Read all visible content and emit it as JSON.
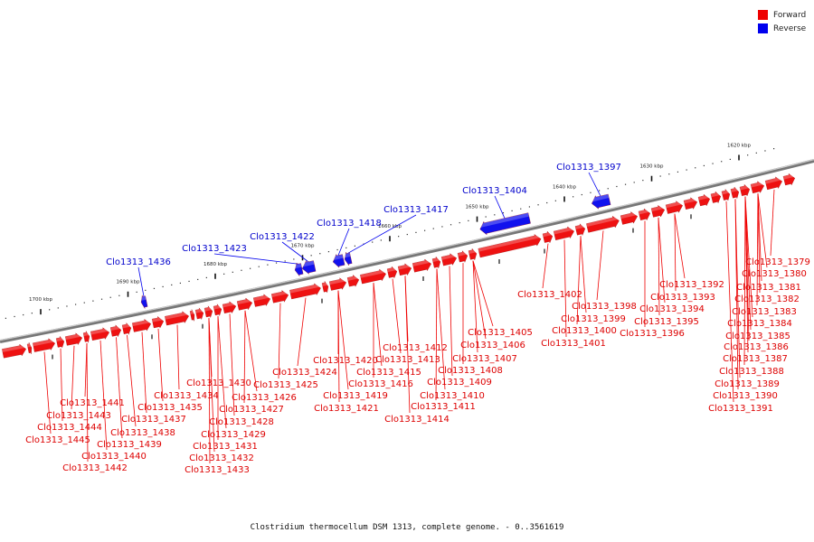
{
  "legend": [
    {
      "label": "Forward",
      "color": "#ee0000"
    },
    {
      "label": "Reverse",
      "color": "#0000ee"
    }
  ],
  "caption": "Clostridium thermocellum DSM 1313, complete genome. - 0..3561619",
  "scale": {
    "unit": "kbp",
    "major_ticks": [
      {
        "kbp": 1620,
        "label": "1620 kbp"
      },
      {
        "kbp": 1630,
        "label": "1630 kbp"
      },
      {
        "kbp": 1640,
        "label": "1640 kbp"
      },
      {
        "kbp": 1650,
        "label": "1650 kbp"
      },
      {
        "kbp": 1660,
        "label": "1660 kbp"
      },
      {
        "kbp": 1670,
        "label": "1670 kbp"
      },
      {
        "kbp": 1680,
        "label": "1680 kbp"
      },
      {
        "kbp": 1690,
        "label": "1690 kbp"
      },
      {
        "kbp": 1700,
        "label": "1700 kbp"
      }
    ]
  },
  "reverse_genes": [
    {
      "label": "Clo1313_1397"
    },
    {
      "label": "Clo1313_1404"
    },
    {
      "label": "Clo1313_1417"
    },
    {
      "label": "Clo1313_1418"
    },
    {
      "label": "Clo1313_1422"
    },
    {
      "label": "Clo1313_1423"
    },
    {
      "label": "Clo1313_1436"
    }
  ],
  "forward_genes": [
    {
      "label": "Clo1313_1379"
    },
    {
      "label": "Clo1313_1380"
    },
    {
      "label": "Clo1313_1381"
    },
    {
      "label": "Clo1313_1382"
    },
    {
      "label": "Clo1313_1383"
    },
    {
      "label": "Clo1313_1384"
    },
    {
      "label": "Clo1313_1385"
    },
    {
      "label": "Clo1313_1386"
    },
    {
      "label": "Clo1313_1387"
    },
    {
      "label": "Clo1313_1388"
    },
    {
      "label": "Clo1313_1389"
    },
    {
      "label": "Clo1313_1390"
    },
    {
      "label": "Clo1313_1391"
    },
    {
      "label": "Clo1313_1392"
    },
    {
      "label": "Clo1313_1393"
    },
    {
      "label": "Clo1313_1394"
    },
    {
      "label": "Clo1313_1395"
    },
    {
      "label": "Clo1313_1396"
    },
    {
      "label": "Clo1313_1398"
    },
    {
      "label": "Clo1313_1399"
    },
    {
      "label": "Clo1313_1400"
    },
    {
      "label": "Clo1313_1401"
    },
    {
      "label": "Clo1313_1402"
    },
    {
      "label": "Clo1313_1405"
    },
    {
      "label": "Clo1313_1406"
    },
    {
      "label": "Clo1313_1407"
    },
    {
      "label": "Clo1313_1408"
    },
    {
      "label": "Clo1313_1409"
    },
    {
      "label": "Clo1313_1410"
    },
    {
      "label": "Clo1313_1411"
    },
    {
      "label": "Clo1313_1412"
    },
    {
      "label": "Clo1313_1413"
    },
    {
      "label": "Clo1313_1414"
    },
    {
      "label": "Clo1313_1415"
    },
    {
      "label": "Clo1313_1416"
    },
    {
      "label": "Clo1313_1419"
    },
    {
      "label": "Clo1313_1420"
    },
    {
      "label": "Clo1313_1421"
    },
    {
      "label": "Clo1313_1424"
    },
    {
      "label": "Clo1313_1425"
    },
    {
      "label": "Clo1313_1426"
    },
    {
      "label": "Clo1313_1427"
    },
    {
      "label": "Clo1313_1428"
    },
    {
      "label": "Clo1313_1429"
    },
    {
      "label": "Clo1313_1430"
    },
    {
      "label": "Clo1313_1431"
    },
    {
      "label": "Clo1313_1432"
    },
    {
      "label": "Clo1313_1433"
    },
    {
      "label": "Clo1313_1434"
    },
    {
      "label": "Clo1313_1435"
    },
    {
      "label": "Clo1313_1437"
    },
    {
      "label": "Clo1313_1438"
    },
    {
      "label": "Clo1313_1439"
    },
    {
      "label": "Clo1313_1440"
    },
    {
      "label": "Clo1313_1441"
    },
    {
      "label": "Clo1313_1442"
    },
    {
      "label": "Clo1313_1443"
    },
    {
      "label": "Clo1313_1444"
    },
    {
      "label": "Clo1313_1445"
    }
  ]
}
